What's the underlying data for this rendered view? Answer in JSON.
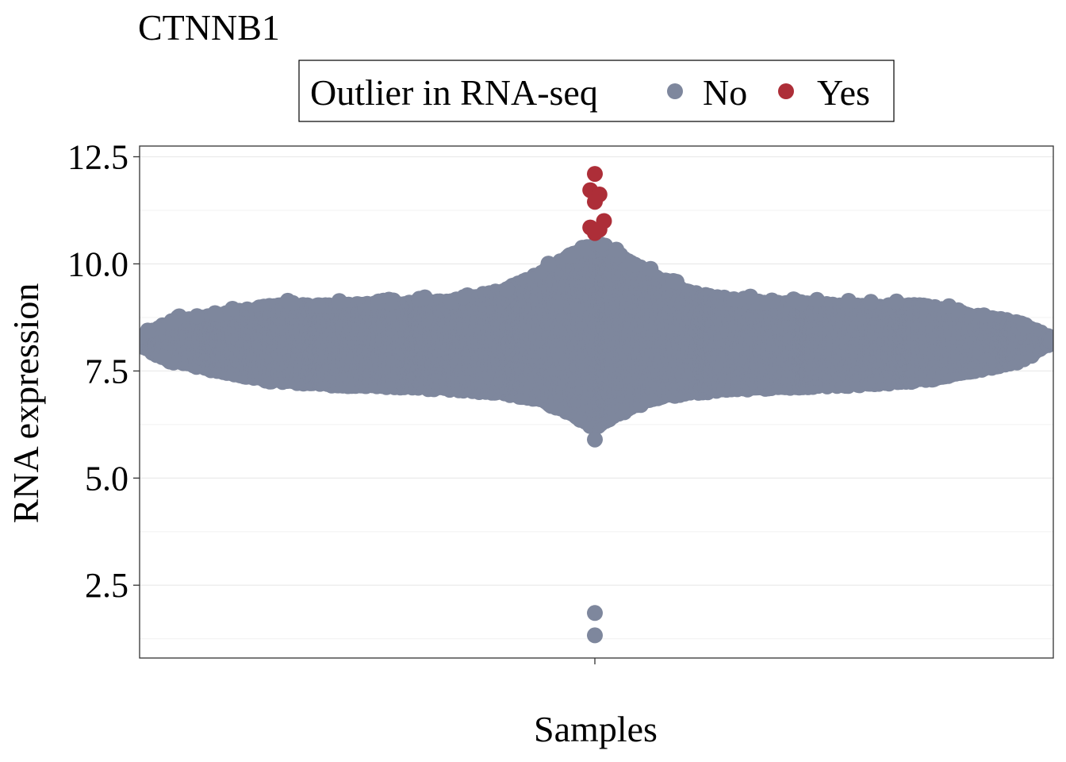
{
  "chart_data": {
    "type": "scatter",
    "subtype": "beeswarm",
    "title": "CTNNB1",
    "xlabel": "Samples",
    "ylabel": "RNA expression",
    "ylim": [
      0.8,
      12.75
    ],
    "y_ticks": [
      2.5,
      5.0,
      7.5,
      10.0,
      12.5
    ],
    "y_tick_labels": [
      "2.5",
      "5.0",
      "7.5",
      "10.0",
      "12.5"
    ],
    "x_ticks": [
      ""
    ],
    "grid": true,
    "legend": {
      "title": "Outlier in RNA-seq",
      "position": "top",
      "entries": [
        {
          "label": "No",
          "color": "#7e879d"
        },
        {
          "label": "Yes",
          "color": "#ad2e38"
        }
      ]
    },
    "series": [
      {
        "name": "No",
        "color": "#7e879d",
        "distribution": {
          "bulk_range": [
            7.0,
            8.6
          ],
          "center_range": [
            6.2,
            10.4
          ],
          "max_half_width_fraction": 1.0
        },
        "notable_points": [
          {
            "x": 0,
            "y": 5.9
          },
          {
            "x": 0,
            "y": 1.85
          },
          {
            "x": 0,
            "y": 1.33
          }
        ]
      },
      {
        "name": "Yes",
        "color": "#ad2e38",
        "values": [
          {
            "x": 0.0,
            "y": 12.1
          },
          {
            "x": -0.01,
            "y": 11.72
          },
          {
            "x": 0.01,
            "y": 11.62
          },
          {
            "x": 0.0,
            "y": 11.45
          },
          {
            "x": 0.02,
            "y": 11.0
          },
          {
            "x": -0.01,
            "y": 10.85
          },
          {
            "x": 0.01,
            "y": 10.8
          },
          {
            "x": 0.0,
            "y": 10.72
          }
        ]
      }
    ]
  }
}
